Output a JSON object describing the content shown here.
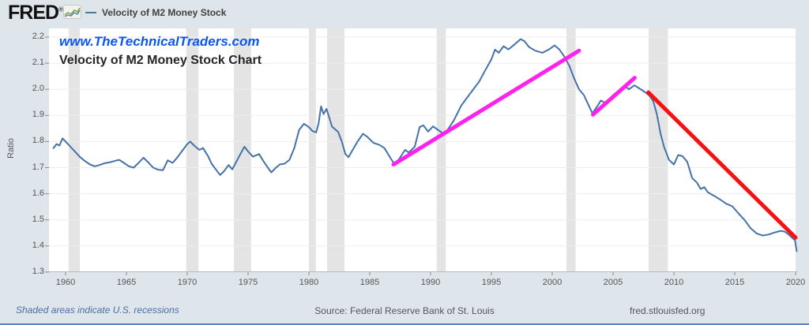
{
  "header": {
    "logo_text": "FRED",
    "logo_reg": "®",
    "legend_label": "Velocity of M2 Money Stock"
  },
  "annotations": {
    "watermark": "www.TheTechnicalTraders.com",
    "chart_title": "Velocity of M2 Money Stock Chart"
  },
  "footer": {
    "note": "Shaded areas indicate U.S. recessions",
    "source": "Source: Federal Reserve Bank of St. Louis",
    "site": "fred.stlouisfed.org"
  },
  "colors": {
    "background": "#dee5eb",
    "plot_background": "#ffffff",
    "series_line": "#4572a7",
    "uptrend_line": "#ff22ee",
    "downtrend_line": "#f41212",
    "recession_band": "#e4e4e4",
    "gridline": "#ededed",
    "axis_line": "#b4bac2",
    "tick": "#8a8a8a",
    "watermark_blue": "#0b57ee"
  },
  "chart_data": {
    "type": "line",
    "title": "Velocity of M2 Money Stock Chart",
    "series_name": "Velocity of M2 Money Stock",
    "xlabel": "",
    "ylabel": "Ratio",
    "ylim": [
      1.3,
      2.2
    ],
    "xlim": [
      1958.6,
      2020.1
    ],
    "grid": true,
    "legend_position": "top-left-header",
    "y_ticks": [
      2.2,
      2.1,
      2.0,
      1.9,
      1.8,
      1.7,
      1.6,
      1.5,
      1.4,
      1.3
    ],
    "x_ticks": [
      1960,
      1965,
      1970,
      1975,
      1980,
      1985,
      1990,
      1995,
      2000,
      2005,
      2010,
      2015,
      2020
    ],
    "recession_bands": [
      [
        1960.25,
        1961.17
      ],
      [
        1969.92,
        1970.92
      ],
      [
        1973.83,
        1975.25
      ],
      [
        1980.0,
        1980.58
      ],
      [
        1981.5,
        1982.92
      ],
      [
        1990.5,
        1991.25
      ],
      [
        2001.17,
        2001.92
      ],
      [
        2007.92,
        2009.5
      ],
      [
        2020.0,
        2020.3
      ]
    ],
    "points": [
      [
        1959.0,
        1.775
      ],
      [
        1959.25,
        1.79
      ],
      [
        1959.5,
        1.785
      ],
      [
        1959.75,
        1.812
      ],
      [
        1960.0,
        1.8
      ],
      [
        1960.4,
        1.78
      ],
      [
        1960.8,
        1.76
      ],
      [
        1961.2,
        1.74
      ],
      [
        1961.6,
        1.725
      ],
      [
        1962.0,
        1.712
      ],
      [
        1962.4,
        1.705
      ],
      [
        1962.8,
        1.71
      ],
      [
        1963.2,
        1.717
      ],
      [
        1963.6,
        1.72
      ],
      [
        1964.0,
        1.725
      ],
      [
        1964.4,
        1.73
      ],
      [
        1964.8,
        1.718
      ],
      [
        1965.2,
        1.705
      ],
      [
        1965.6,
        1.7
      ],
      [
        1966.0,
        1.718
      ],
      [
        1966.4,
        1.738
      ],
      [
        1966.8,
        1.72
      ],
      [
        1967.2,
        1.7
      ],
      [
        1967.6,
        1.692
      ],
      [
        1968.0,
        1.69
      ],
      [
        1968.4,
        1.728
      ],
      [
        1968.8,
        1.718
      ],
      [
        1969.2,
        1.74
      ],
      [
        1969.6,
        1.765
      ],
      [
        1970.0,
        1.79
      ],
      [
        1970.25,
        1.8
      ],
      [
        1970.6,
        1.783
      ],
      [
        1971.0,
        1.768
      ],
      [
        1971.3,
        1.775
      ],
      [
        1971.7,
        1.745
      ],
      [
        1972.0,
        1.715
      ],
      [
        1972.4,
        1.69
      ],
      [
        1972.7,
        1.672
      ],
      [
        1973.0,
        1.685
      ],
      [
        1973.4,
        1.71
      ],
      [
        1973.7,
        1.693
      ],
      [
        1974.0,
        1.72
      ],
      [
        1974.4,
        1.755
      ],
      [
        1974.7,
        1.78
      ],
      [
        1975.0,
        1.762
      ],
      [
        1975.4,
        1.742
      ],
      [
        1975.9,
        1.752
      ],
      [
        1976.3,
        1.722
      ],
      [
        1976.9,
        1.682
      ],
      [
        1977.3,
        1.7
      ],
      [
        1977.6,
        1.712
      ],
      [
        1978.0,
        1.715
      ],
      [
        1978.4,
        1.73
      ],
      [
        1978.8,
        1.775
      ],
      [
        1979.2,
        1.845
      ],
      [
        1979.6,
        1.868
      ],
      [
        1980.0,
        1.855
      ],
      [
        1980.3,
        1.84
      ],
      [
        1980.6,
        1.835
      ],
      [
        1980.8,
        1.87
      ],
      [
        1981.0,
        1.935
      ],
      [
        1981.2,
        1.905
      ],
      [
        1981.45,
        1.925
      ],
      [
        1981.9,
        1.857
      ],
      [
        1982.4,
        1.837
      ],
      [
        1982.7,
        1.8
      ],
      [
        1983.0,
        1.752
      ],
      [
        1983.25,
        1.74
      ],
      [
        1983.6,
        1.768
      ],
      [
        1984.0,
        1.8
      ],
      [
        1984.45,
        1.83
      ],
      [
        1984.8,
        1.818
      ],
      [
        1985.3,
        1.795
      ],
      [
        1985.8,
        1.787
      ],
      [
        1986.2,
        1.775
      ],
      [
        1986.6,
        1.745
      ],
      [
        1987.0,
        1.715
      ],
      [
        1987.4,
        1.732
      ],
      [
        1987.9,
        1.768
      ],
      [
        1988.2,
        1.758
      ],
      [
        1988.7,
        1.78
      ],
      [
        1989.1,
        1.855
      ],
      [
        1989.4,
        1.862
      ],
      [
        1989.8,
        1.838
      ],
      [
        1990.2,
        1.858
      ],
      [
        1990.6,
        1.845
      ],
      [
        1991.0,
        1.832
      ],
      [
        1991.4,
        1.845
      ],
      [
        1991.9,
        1.88
      ],
      [
        1992.5,
        1.936
      ],
      [
        1993.0,
        1.968
      ],
      [
        1993.6,
        2.005
      ],
      [
        1994.0,
        2.03
      ],
      [
        1994.4,
        2.065
      ],
      [
        1995.0,
        2.115
      ],
      [
        1995.3,
        2.152
      ],
      [
        1995.6,
        2.14
      ],
      [
        1996.0,
        2.165
      ],
      [
        1996.4,
        2.153
      ],
      [
        1996.9,
        2.172
      ],
      [
        1997.4,
        2.192
      ],
      [
        1997.7,
        2.185
      ],
      [
        1998.1,
        2.162
      ],
      [
        1998.6,
        2.148
      ],
      [
        1999.2,
        2.14
      ],
      [
        1999.7,
        2.152
      ],
      [
        2000.2,
        2.168
      ],
      [
        2000.6,
        2.152
      ],
      [
        2001.0,
        2.125
      ],
      [
        2001.4,
        2.09
      ],
      [
        2001.8,
        2.042
      ],
      [
        2002.2,
        2.0
      ],
      [
        2002.6,
        1.978
      ],
      [
        2002.9,
        1.948
      ],
      [
        2003.3,
        1.908
      ],
      [
        2003.7,
        1.935
      ],
      [
        2004.0,
        1.957
      ],
      [
        2004.3,
        1.949
      ],
      [
        2004.7,
        1.963
      ],
      [
        2005.1,
        1.982
      ],
      [
        2005.6,
        1.998
      ],
      [
        2006.0,
        2.012
      ],
      [
        2006.3,
        2.0
      ],
      [
        2006.75,
        2.015
      ],
      [
        2007.2,
        2.002
      ],
      [
        2007.6,
        1.99
      ],
      [
        2008.0,
        1.975
      ],
      [
        2008.3,
        1.955
      ],
      [
        2008.6,
        1.905
      ],
      [
        2008.9,
        1.83
      ],
      [
        2009.2,
        1.778
      ],
      [
        2009.6,
        1.73
      ],
      [
        2010.0,
        1.712
      ],
      [
        2010.35,
        1.748
      ],
      [
        2010.7,
        1.744
      ],
      [
        2011.1,
        1.722
      ],
      [
        2011.5,
        1.66
      ],
      [
        2011.9,
        1.642
      ],
      [
        2012.2,
        1.618
      ],
      [
        2012.5,
        1.625
      ],
      [
        2012.8,
        1.605
      ],
      [
        2013.3,
        1.592
      ],
      [
        2013.8,
        1.578
      ],
      [
        2014.3,
        1.562
      ],
      [
        2014.8,
        1.552
      ],
      [
        2015.3,
        1.525
      ],
      [
        2015.8,
        1.5
      ],
      [
        2016.3,
        1.468
      ],
      [
        2016.8,
        1.448
      ],
      [
        2017.3,
        1.44
      ],
      [
        2017.8,
        1.444
      ],
      [
        2018.3,
        1.452
      ],
      [
        2018.8,
        1.458
      ],
      [
        2019.1,
        1.455
      ],
      [
        2019.4,
        1.445
      ],
      [
        2019.7,
        1.432
      ],
      [
        2019.95,
        1.422
      ],
      [
        2020.1,
        1.38
      ]
    ],
    "trend_lines": [
      {
        "name": "uptrend-1987-2002",
        "color": "#ff22ee",
        "width": 5,
        "from": [
          1986.95,
          1.712
        ],
        "to": [
          2002.2,
          2.148
        ]
      },
      {
        "name": "uptrend-2003-2007",
        "color": "#ff22ee",
        "width": 5,
        "from": [
          2003.35,
          1.903
        ],
        "to": [
          2006.78,
          2.044
        ]
      },
      {
        "name": "downtrend-2008-2020",
        "color": "#f41212",
        "width": 5,
        "from": [
          2007.9,
          1.988
        ],
        "to": [
          2020.0,
          1.432
        ]
      }
    ]
  }
}
